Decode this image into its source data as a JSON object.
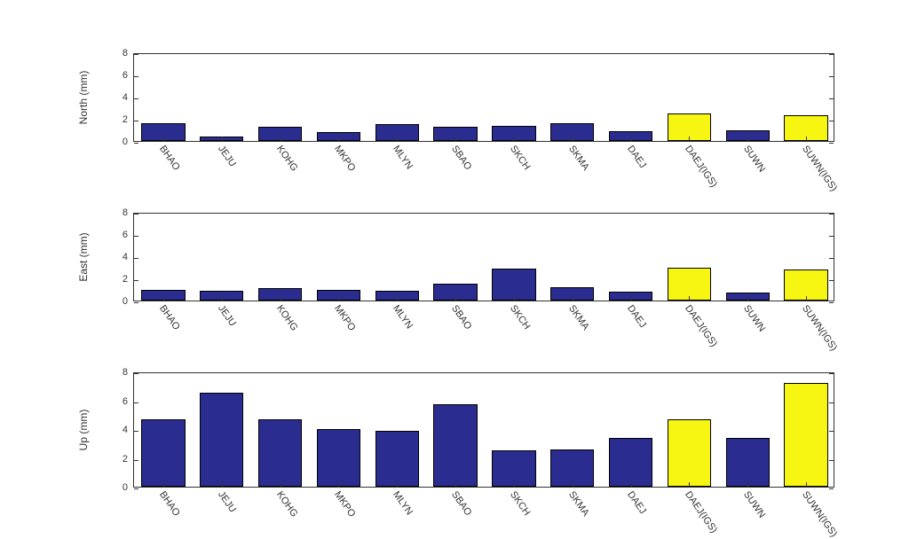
{
  "figure": {
    "background_color": "#ffffff",
    "panel_border_color": "#333333",
    "text_color": "#333333",
    "tick_fontsize": 11,
    "label_fontsize": 12,
    "categories": [
      "BHAO",
      "JEJU",
      "KOHG",
      "MKPO",
      "MLYN",
      "SBAO",
      "SKCH",
      "SKMA",
      "DAEJ",
      "DAEJ(IGS)",
      "SUWN",
      "SUWN(IGS)"
    ],
    "bar_width": 0.75,
    "colors": {
      "blue": "#2a2d8f",
      "yellow": "#f7f613"
    },
    "series_color_map": [
      "blue",
      "blue",
      "blue",
      "blue",
      "blue",
      "blue",
      "blue",
      "blue",
      "blue",
      "yellow",
      "blue",
      "yellow"
    ],
    "panels": [
      {
        "ylabel": "North (mm)",
        "ylim": [
          0,
          8
        ],
        "ytick_step": 2,
        "values": [
          1.6,
          0.4,
          1.3,
          0.8,
          1.5,
          1.3,
          1.4,
          1.6,
          0.9,
          2.5,
          1.0,
          2.3
        ]
      },
      {
        "ylabel": "East (mm)",
        "ylim": [
          0,
          8
        ],
        "ytick_step": 2,
        "values": [
          1.0,
          0.9,
          1.1,
          1.0,
          0.9,
          1.5,
          2.9,
          1.2,
          0.8,
          3.0,
          0.7,
          2.8
        ]
      },
      {
        "ylabel": "Up (mm)",
        "ylim": [
          0,
          8
        ],
        "ytick_step": 2,
        "values": [
          4.7,
          6.5,
          4.7,
          4.0,
          3.9,
          5.7,
          2.5,
          2.6,
          3.4,
          4.7,
          3.4,
          7.2
        ]
      }
    ],
    "panel_layout": {
      "heights": [
        100,
        100,
        130
      ],
      "tops": [
        40,
        220,
        400
      ],
      "xtick_area_height": 60
    }
  }
}
